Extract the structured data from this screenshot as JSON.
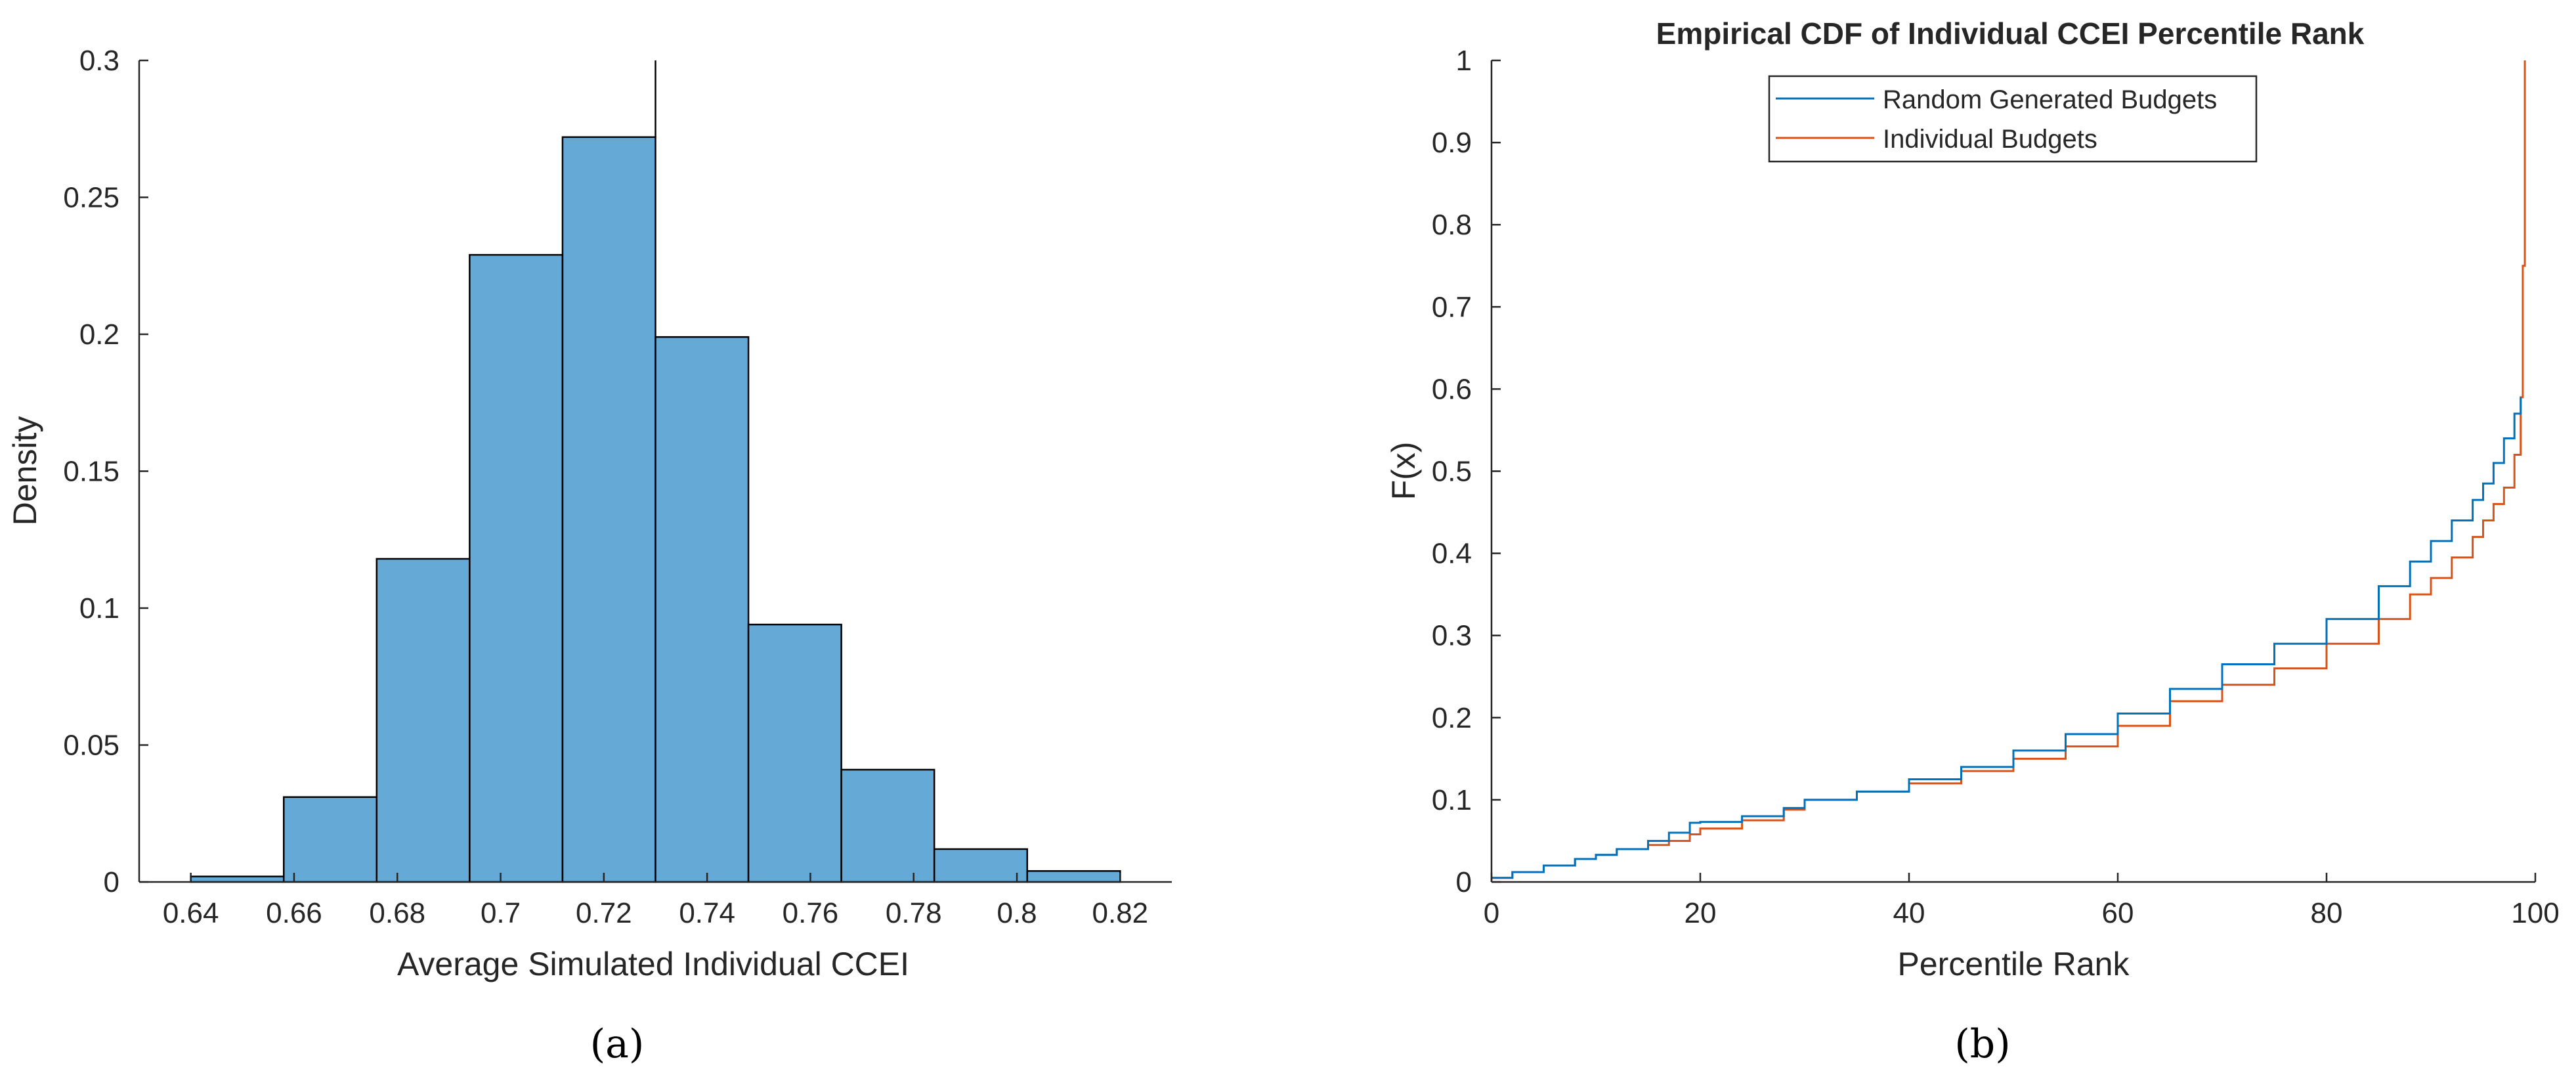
{
  "chart_data": [
    {
      "type": "bar",
      "subtype": "histogram",
      "panel_label": "(a)",
      "title": "",
      "xlabel": "Average Simulated Individual CCEI",
      "ylabel": "Density",
      "xlim": [
        0.63,
        0.83
      ],
      "ylim": [
        0,
        0.3
      ],
      "xticks": [
        "0.64",
        "0.66",
        "0.68",
        "0.7",
        "0.72",
        "0.74",
        "0.76",
        "0.78",
        "0.8",
        "0.82"
      ],
      "yticks": [
        "0",
        "0.05",
        "0.1",
        "0.15",
        "0.2",
        "0.25",
        "0.3"
      ],
      "bins": [
        {
          "x0": 0.64,
          "x1": 0.658,
          "value": 0.002
        },
        {
          "x0": 0.658,
          "x1": 0.676,
          "value": 0.031
        },
        {
          "x0": 0.676,
          "x1": 0.694,
          "value": 0.118
        },
        {
          "x0": 0.694,
          "x1": 0.712,
          "value": 0.229
        },
        {
          "x0": 0.712,
          "x1": 0.73,
          "value": 0.272
        },
        {
          "x0": 0.73,
          "x1": 0.748,
          "value": 0.199
        },
        {
          "x0": 0.748,
          "x1": 0.766,
          "value": 0.094
        },
        {
          "x0": 0.766,
          "x1": 0.784,
          "value": 0.041
        },
        {
          "x0": 0.784,
          "x1": 0.802,
          "value": 0.012
        },
        {
          "x0": 0.802,
          "x1": 0.82,
          "value": 0.004
        }
      ],
      "reference_line_x": 0.73,
      "bar_color": "#65a9d7"
    },
    {
      "type": "line",
      "subtype": "step",
      "panel_label": "(b)",
      "title": "Empirical CDF of Individual CCEI Percentile Rank",
      "xlabel": "Percentile Rank",
      "ylabel": "F(x)",
      "xlim": [
        0,
        100
      ],
      "ylim": [
        0,
        1
      ],
      "xticks": [
        "0",
        "20",
        "40",
        "60",
        "80",
        "100"
      ],
      "yticks": [
        "0",
        "0.1",
        "0.2",
        "0.3",
        "0.4",
        "0.5",
        "0.6",
        "0.7",
        "0.8",
        "0.9",
        "1"
      ],
      "legend_position": "top-center",
      "series": [
        {
          "name": "Random Generated Budgets",
          "color": "#0072bd",
          "x": [
            0,
            2,
            5,
            8,
            10,
            12,
            15,
            17,
            19,
            20,
            24,
            28,
            30,
            35,
            40,
            45,
            50,
            55,
            60,
            65,
            70,
            75,
            80,
            85,
            88,
            90,
            92,
            94,
            95,
            96,
            97,
            98,
            98.6
          ],
          "y": [
            0.005,
            0.012,
            0.02,
            0.028,
            0.033,
            0.04,
            0.05,
            0.06,
            0.072,
            0.073,
            0.08,
            0.09,
            0.1,
            0.11,
            0.125,
            0.14,
            0.16,
            0.18,
            0.205,
            0.235,
            0.265,
            0.29,
            0.32,
            0.36,
            0.39,
            0.415,
            0.44,
            0.465,
            0.485,
            0.51,
            0.54,
            0.57,
            0.59
          ]
        },
        {
          "name": "Individual Budgets",
          "color": "#d95319",
          "x": [
            0,
            2,
            5,
            8,
            10,
            12,
            15,
            17,
            19,
            20,
            24,
            28,
            30,
            35,
            40,
            45,
            50,
            55,
            60,
            65,
            70,
            75,
            80,
            85,
            88,
            90,
            92,
            94,
            95,
            96,
            97,
            98,
            98.6,
            98.8,
            99
          ],
          "y": [
            0.005,
            0.012,
            0.02,
            0.028,
            0.033,
            0.04,
            0.045,
            0.05,
            0.058,
            0.065,
            0.075,
            0.088,
            0.1,
            0.11,
            0.12,
            0.135,
            0.15,
            0.165,
            0.19,
            0.22,
            0.24,
            0.26,
            0.29,
            0.32,
            0.35,
            0.37,
            0.395,
            0.42,
            0.44,
            0.46,
            0.48,
            0.52,
            0.59,
            0.75,
            1.0
          ]
        }
      ]
    }
  ]
}
